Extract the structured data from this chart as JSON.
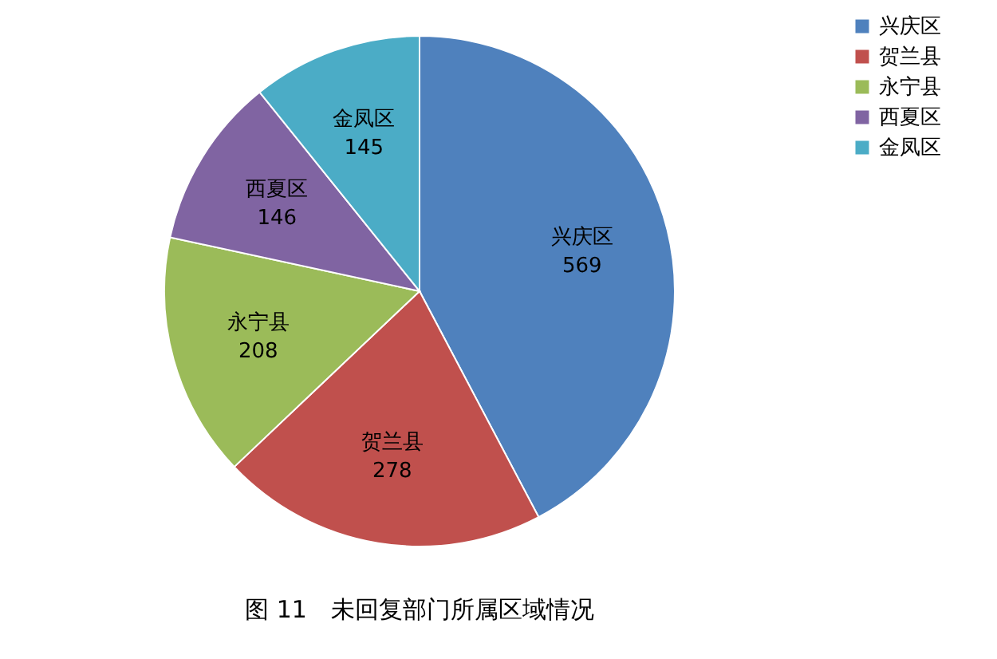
{
  "chart_data": {
    "type": "pie",
    "title": "图 11　未回复部门所属区域情况",
    "categories": [
      "兴庆区",
      "贺兰县",
      "永宁县",
      "西夏区",
      "金凤区"
    ],
    "values": [
      569,
      278,
      208,
      146,
      145
    ],
    "colors": [
      "#4f81bd",
      "#c0504d",
      "#9bbb59",
      "#8064a2",
      "#4bacc6"
    ],
    "data_labels": true,
    "legend": "right"
  }
}
